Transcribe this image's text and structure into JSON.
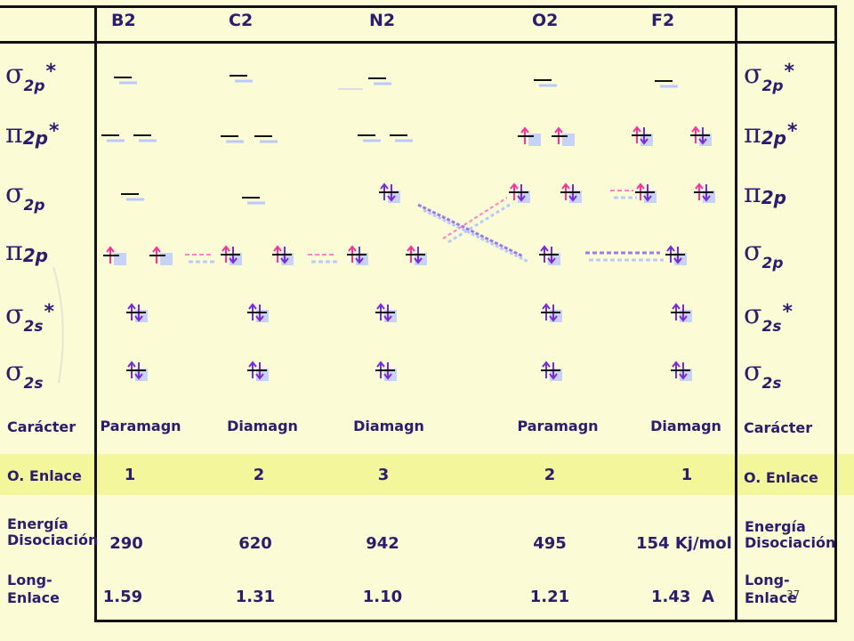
{
  "molecules": [
    "B2",
    "C2",
    "N2",
    "O2",
    "F2"
  ],
  "orbitals_left": [
    {
      "main": "σ",
      "sub": "2p",
      "star": "*"
    },
    {
      "main": "π",
      "sub": "2p",
      "star": "*"
    },
    {
      "main": "σ",
      "sub": "2p",
      "star": ""
    },
    {
      "main": "π",
      "sub": "2p",
      "star": ""
    },
    {
      "main": "σ",
      "sub": "2s",
      "star": "*"
    },
    {
      "main": "σ",
      "sub": "2s",
      "star": ""
    }
  ],
  "orbitals_right": [
    {
      "main": "σ",
      "sub": "2p",
      "star": "*"
    },
    {
      "main": "π",
      "sub": "2p",
      "star": "*"
    },
    {
      "main": "π",
      "sub": "2p",
      "star": ""
    },
    {
      "main": "σ",
      "sub": "2p",
      "star": ""
    },
    {
      "main": "σ",
      "sub": "2s",
      "star": "*"
    },
    {
      "main": "σ",
      "sub": "2s",
      "star": ""
    }
  ],
  "rows": {
    "caracter_label": "Carácter",
    "caracter_values": [
      "Paramagn",
      "Diamagn",
      "Diamagn",
      "Paramagn",
      "Diamagn"
    ],
    "enlace_label": "O. Enlace",
    "enlace_values": [
      "1",
      "2",
      "3",
      "2",
      "1"
    ],
    "energia_label_1": "Energía",
    "energia_label_2": "Disociación",
    "energia_values": [
      "290",
      "620",
      "942",
      "495",
      "154 Kj/mol"
    ],
    "long_label_1": "Long-",
    "long_label_2": "Enlace",
    "long_values": [
      "1.59",
      "1.31",
      "1.10",
      "1.21",
      "1.43  A"
    ]
  },
  "page_number": "37",
  "colors": {
    "ink": "#2b1d6e",
    "highlight": "#f3f69b",
    "arrow_pink": "#ff2fa0",
    "arrow_purple": "#7a2ad6",
    "shadow_blue": "#b9c9ff"
  }
}
